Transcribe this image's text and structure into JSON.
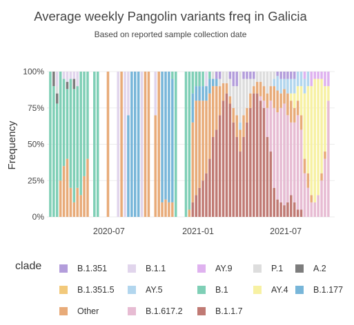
{
  "chart_data": {
    "type": "bar",
    "stacked": "percent",
    "title": "Average weekly Pangolin variants freq in Galicia",
    "subtitle": "Based on reported sample collection date",
    "xlabel": "",
    "ylabel": "Frequency",
    "y_ticks": [
      "0%",
      "25%",
      "50%",
      "75%",
      "100%"
    ],
    "ylim": [
      0,
      100
    ],
    "x_ticks": [
      {
        "label": "2020-07",
        "date": "2020-07-01"
      },
      {
        "label": "2021-01",
        "date": "2021-01-01"
      },
      {
        "label": "2021-07",
        "date": "2021-07-01"
      }
    ],
    "x_range": [
      "2020-02-24",
      "2021-10-10"
    ],
    "grid": true,
    "legend_title": "clade",
    "legend_position": "bottom",
    "series": [
      {
        "name": "B.1.351",
        "color": "#b39ddb"
      },
      {
        "name": "B.1.1",
        "color": "#e1d5ec"
      },
      {
        "name": "AY.9",
        "color": "#dfb2ef"
      },
      {
        "name": "P.1",
        "color": "#dddddd"
      },
      {
        "name": "A.2",
        "color": "#7d7d7d"
      },
      {
        "name": "B.1.351.5",
        "color": "#f2c97b"
      },
      {
        "name": "AY.5",
        "color": "#b2d6ee"
      },
      {
        "name": "B.1",
        "color": "#7fcfb6"
      },
      {
        "name": "AY.4",
        "color": "#f7f1a3"
      },
      {
        "name": "B.1.177",
        "color": "#78b6d9"
      },
      {
        "name": "Other",
        "color": "#e8ab79"
      },
      {
        "name": "B.1.617.2",
        "color": "#e7bcd3"
      },
      {
        "name": "B.1.1.7",
        "color": "#c07a74"
      }
    ],
    "weeks": [
      {
        "date": "2020-03-02",
        "values": {
          "B.1": 100
        }
      },
      {
        "date": "2020-03-09",
        "values": {
          "B.1": 90,
          "A.2": 10
        }
      },
      {
        "date": "2020-03-16",
        "values": {
          "B.1": 78,
          "A.2": 7,
          "B.1.1": 10,
          "P.1": 5
        }
      },
      {
        "date": "2020-03-23",
        "values": {
          "B.1": 75,
          "Other": 25
        }
      },
      {
        "date": "2020-03-30",
        "values": {
          "B.1": 60,
          "Other": 35,
          "B.1.1": 5
        }
      },
      {
        "date": "2020-04-06",
        "values": {
          "B.1": 48,
          "Other": 40,
          "B.1.1": 7,
          "A.2": 5
        }
      },
      {
        "date": "2020-04-13",
        "values": {
          "B.1": 75,
          "Other": 20,
          "B.1.1": 5
        }
      },
      {
        "date": "2020-04-20",
        "values": {
          "B.1": 78,
          "Other": 10,
          "B.1.1": 5,
          "A.2": 7
        }
      },
      {
        "date": "2020-04-27",
        "values": {
          "B.1": 70,
          "Other": 20,
          "B.1.1": 10
        }
      },
      {
        "date": "2020-05-04",
        "values": {
          "B.1": 85,
          "Other": 15
        }
      },
      {
        "date": "2020-05-11",
        "values": {
          "B.1": 72,
          "Other": 28
        }
      },
      {
        "date": "2020-05-18",
        "values": {
          "B.1": 60,
          "Other": 40
        }
      },
      {
        "date": "2020-06-01",
        "values": {
          "B.1": 100
        }
      },
      {
        "date": "2020-06-08",
        "values": {
          "B.1": 100
        }
      },
      {
        "date": "2020-06-29",
        "values": {
          "Other": 100
        }
      },
      {
        "date": "2020-07-20",
        "values": {
          "B.1.1": 100
        }
      },
      {
        "date": "2020-07-27",
        "values": {
          "Other": 100
        }
      },
      {
        "date": "2020-08-03",
        "values": {
          "B.1.1": 100
        }
      },
      {
        "date": "2020-08-10",
        "values": {
          "B.1.177": 70,
          "B.1.1": 30
        }
      },
      {
        "date": "2020-08-17",
        "values": {
          "B.1.177": 100
        }
      },
      {
        "date": "2020-08-24",
        "values": {
          "B.1.177": 100
        }
      },
      {
        "date": "2020-08-31",
        "values": {
          "B.1.177": 100
        }
      },
      {
        "date": "2020-09-07",
        "values": {
          "B.1.1": 100
        }
      },
      {
        "date": "2020-09-14",
        "values": {
          "Other": 100
        }
      },
      {
        "date": "2020-09-21",
        "values": {
          "Other": 100
        }
      },
      {
        "date": "2020-10-05",
        "values": {
          "Other": 70,
          "B.1.1": 30
        }
      },
      {
        "date": "2020-10-12",
        "values": {
          "Other": 100
        }
      },
      {
        "date": "2020-10-19",
        "values": {
          "B.1.177": 90,
          "Other": 10
        }
      },
      {
        "date": "2020-10-26",
        "values": {
          "Other": 12,
          "B.1.177": 88
        }
      },
      {
        "date": "2020-11-02",
        "values": {
          "Other": 10,
          "B.1.177": 90
        }
      },
      {
        "date": "2020-11-09",
        "values": {
          "B.1.177": 85,
          "Other": 10,
          "B.1": 5
        }
      },
      {
        "date": "2020-11-16",
        "values": {
          "B.1": 100
        }
      },
      {
        "date": "2020-12-07",
        "values": {
          "B.1": 100
        }
      },
      {
        "date": "2020-12-14",
        "values": {
          "B.1": 95,
          "Other": 5
        }
      },
      {
        "date": "2020-12-21",
        "values": {
          "B.1.1.7": 10,
          "Other": 55,
          "B.1.177": 20,
          "B.1": 15
        }
      },
      {
        "date": "2020-12-28",
        "values": {
          "B.1.1.7": 15,
          "Other": 65,
          "B.1.177": 10,
          "B.1": 10
        }
      },
      {
        "date": "2021-01-04",
        "values": {
          "B.1.1.7": 20,
          "Other": 60,
          "B.1.177": 10,
          "B.1": 10
        }
      },
      {
        "date": "2021-01-11",
        "values": {
          "B.1.1.7": 25,
          "Other": 55,
          "B.1.177": 10,
          "B.1": 10
        }
      },
      {
        "date": "2021-01-18",
        "values": {
          "B.1.1.7": 30,
          "Other": 50,
          "B.1.1": 10,
          "B.1.177": 10
        }
      },
      {
        "date": "2021-01-25",
        "values": {
          "B.1.1.7": 40,
          "Other": 45,
          "B.1.177": 10,
          "B.1": 5
        }
      },
      {
        "date": "2021-02-01",
        "values": {
          "B.1.1.7": 55,
          "Other": 35,
          "B.1.177": 5,
          "P.1": 5
        }
      },
      {
        "date": "2021-02-08",
        "values": {
          "B.1.1.7": 60,
          "Other": 30,
          "B.1.177": 5,
          "B.1.351": 5
        }
      },
      {
        "date": "2021-02-15",
        "values": {
          "B.1.1.7": 70,
          "Other": 20,
          "P.1": 5,
          "B.1.351": 5
        }
      },
      {
        "date": "2021-02-22",
        "values": {
          "B.1.1.7": 80,
          "Other": 12,
          "P.1": 8
        }
      },
      {
        "date": "2021-03-01",
        "values": {
          "B.1.1.7": 85,
          "Other": 7,
          "P.1": 8
        }
      },
      {
        "date": "2021-03-08",
        "values": {
          "B.1.1.7": 78,
          "P.1": 12,
          "Other": 5,
          "B.1.351": 5
        }
      },
      {
        "date": "2021-03-15",
        "values": {
          "B.1.1.7": 65,
          "P.1": 15,
          "Other": 10,
          "B.1.351": 10
        }
      },
      {
        "date": "2021-03-22",
        "values": {
          "B.1.1.7": 55,
          "P.1": 20,
          "Other": 15,
          "B.1.351": 10
        }
      },
      {
        "date": "2021-03-29",
        "values": {
          "B.1.1.7": 45,
          "P.1": 35,
          "Other": 15,
          "AY.5": 5
        }
      },
      {
        "date": "2021-04-05",
        "values": {
          "B.1.1.7": 55,
          "P.1": 25,
          "Other": 15,
          "B.1.351": 5
        }
      },
      {
        "date": "2021-04-12",
        "values": {
          "B.1.1.7": 65,
          "P.1": 20,
          "Other": 10,
          "B.1.351": 5
        }
      },
      {
        "date": "2021-04-19",
        "values": {
          "B.1.1.7": 75,
          "P.1": 10,
          "Other": 10,
          "B.1.351": 5
        }
      },
      {
        "date": "2021-04-26",
        "values": {
          "B.1.1.7": 85,
          "P.1": 5,
          "Other": 5,
          "B.1.351": 5
        }
      },
      {
        "date": "2021-05-03",
        "values": {
          "B.1.1.7": 85,
          "P.1": 7,
          "Other": 8
        }
      },
      {
        "date": "2021-05-10",
        "values": {
          "B.1.1.7": 80,
          "B.1.617.2": 3,
          "P.1": 7,
          "Other": 10
        }
      },
      {
        "date": "2021-05-17",
        "values": {
          "B.1.1.7": 75,
          "B.1.617.2": 5,
          "P.1": 10,
          "Other": 10
        }
      },
      {
        "date": "2021-05-24",
        "values": {
          "B.1.1.7": 55,
          "B.1.617.2": 20,
          "P.1": 15,
          "Other": 10
        }
      },
      {
        "date": "2021-05-31",
        "values": {
          "B.1.1.7": 45,
          "B.1.617.2": 35,
          "P.1": 10,
          "Other": 10
        }
      },
      {
        "date": "2021-06-07",
        "values": {
          "B.1.1.7": 20,
          "B.1.617.2": 55,
          "Other": 15,
          "AY.5": 5,
          "P.1": 5
        }
      },
      {
        "date": "2021-06-14",
        "values": {
          "B.1.1.7": 12,
          "B.1.617.2": 60,
          "Other": 15,
          "AY.5": 10,
          "B.1.351": 3
        }
      },
      {
        "date": "2021-06-21",
        "values": {
          "B.1.1.7": 10,
          "B.1.617.2": 65,
          "Other": 10,
          "AY.5": 10,
          "B.1.351": 5
        }
      },
      {
        "date": "2021-06-28",
        "values": {
          "B.1.1.7": 8,
          "B.1.617.2": 70,
          "Other": 10,
          "AY.5": 7,
          "B.1.351": 5
        }
      },
      {
        "date": "2021-07-05",
        "values": {
          "B.1.1.7": 10,
          "B.1.617.2": 60,
          "Other": 15,
          "AY.5": 10,
          "B.1.351": 5
        }
      },
      {
        "date": "2021-07-12",
        "values": {
          "B.1.1.7": 15,
          "B.1.617.2": 50,
          "Other": 15,
          "AY.5": 10,
          "AY.4": 5,
          "B.1.351": 5
        }
      },
      {
        "date": "2021-07-19",
        "values": {
          "B.1.1.7": 10,
          "B.1.617.2": 55,
          "Other": 10,
          "AY.5": 10,
          "AY.4": 10,
          "B.1.351": 5
        }
      },
      {
        "date": "2021-07-26",
        "values": {
          "B.1.1.7": 5,
          "B.1.617.2": 65,
          "AY.4": 10,
          "AY.5": 10,
          "Other": 10
        }
      },
      {
        "date": "2021-08-02",
        "values": {
          "B.1.1.7": 5,
          "B.1.617.2": 55,
          "AY.4": 20,
          "AY.5": 10,
          "Other": 10
        }
      },
      {
        "date": "2021-08-09",
        "values": {
          "B.1.617.2": 30,
          "AY.4": 45,
          "AY.5": 10,
          "AY.9": 5,
          "Other": 10
        }
      },
      {
        "date": "2021-08-16",
        "values": {
          "B.1.617.2": 20,
          "AY.4": 60,
          "AY.5": 10,
          "Other": 10
        }
      },
      {
        "date": "2021-08-23",
        "values": {
          "B.1.617.2": 10,
          "AY.4": 75,
          "AY.9": 10,
          "Other": 5
        }
      },
      {
        "date": "2021-08-30",
        "values": {
          "B.1.617.2": 10,
          "AY.4": 85,
          "AY.9": 5
        }
      },
      {
        "date": "2021-09-06",
        "values": {
          "B.1.617.2": 15,
          "AY.4": 80,
          "AY.9": 5
        }
      },
      {
        "date": "2021-09-13",
        "values": {
          "B.1.617.2": 25,
          "AY.4": 65,
          "AY.9": 5,
          "Other": 5
        }
      },
      {
        "date": "2021-09-20",
        "values": {
          "B.1.617.2": 40,
          "AY.4": 45,
          "AY.9": 10,
          "Other": 5
        }
      },
      {
        "date": "2021-09-27",
        "values": {
          "B.1.617.2": 80,
          "AY.4": 10,
          "AY.9": 10
        }
      }
    ]
  },
  "legend": {
    "title": "clade",
    "items": [
      {
        "label": "B.1.351",
        "color": "#b39ddb"
      },
      {
        "label": "B.1.1",
        "color": "#e1d5ec"
      },
      {
        "label": "AY.9",
        "color": "#dfb2ef"
      },
      {
        "label": "P.1",
        "color": "#dddddd"
      },
      {
        "label": "A.2",
        "color": "#7d7d7d"
      },
      {
        "label": "B.1.351.5",
        "color": "#f2c97b"
      },
      {
        "label": "AY.5",
        "color": "#b2d6ee"
      },
      {
        "label": "B.1",
        "color": "#7fcfb6"
      },
      {
        "label": "AY.4",
        "color": "#f7f1a3"
      },
      {
        "label": "B.1.177",
        "color": "#78b6d9"
      },
      {
        "label": "Other",
        "color": "#e8ab79"
      },
      {
        "label": "B.1.617.2",
        "color": "#e7bcd3"
      },
      {
        "label": "B.1.1.7",
        "color": "#c07a74"
      }
    ]
  }
}
